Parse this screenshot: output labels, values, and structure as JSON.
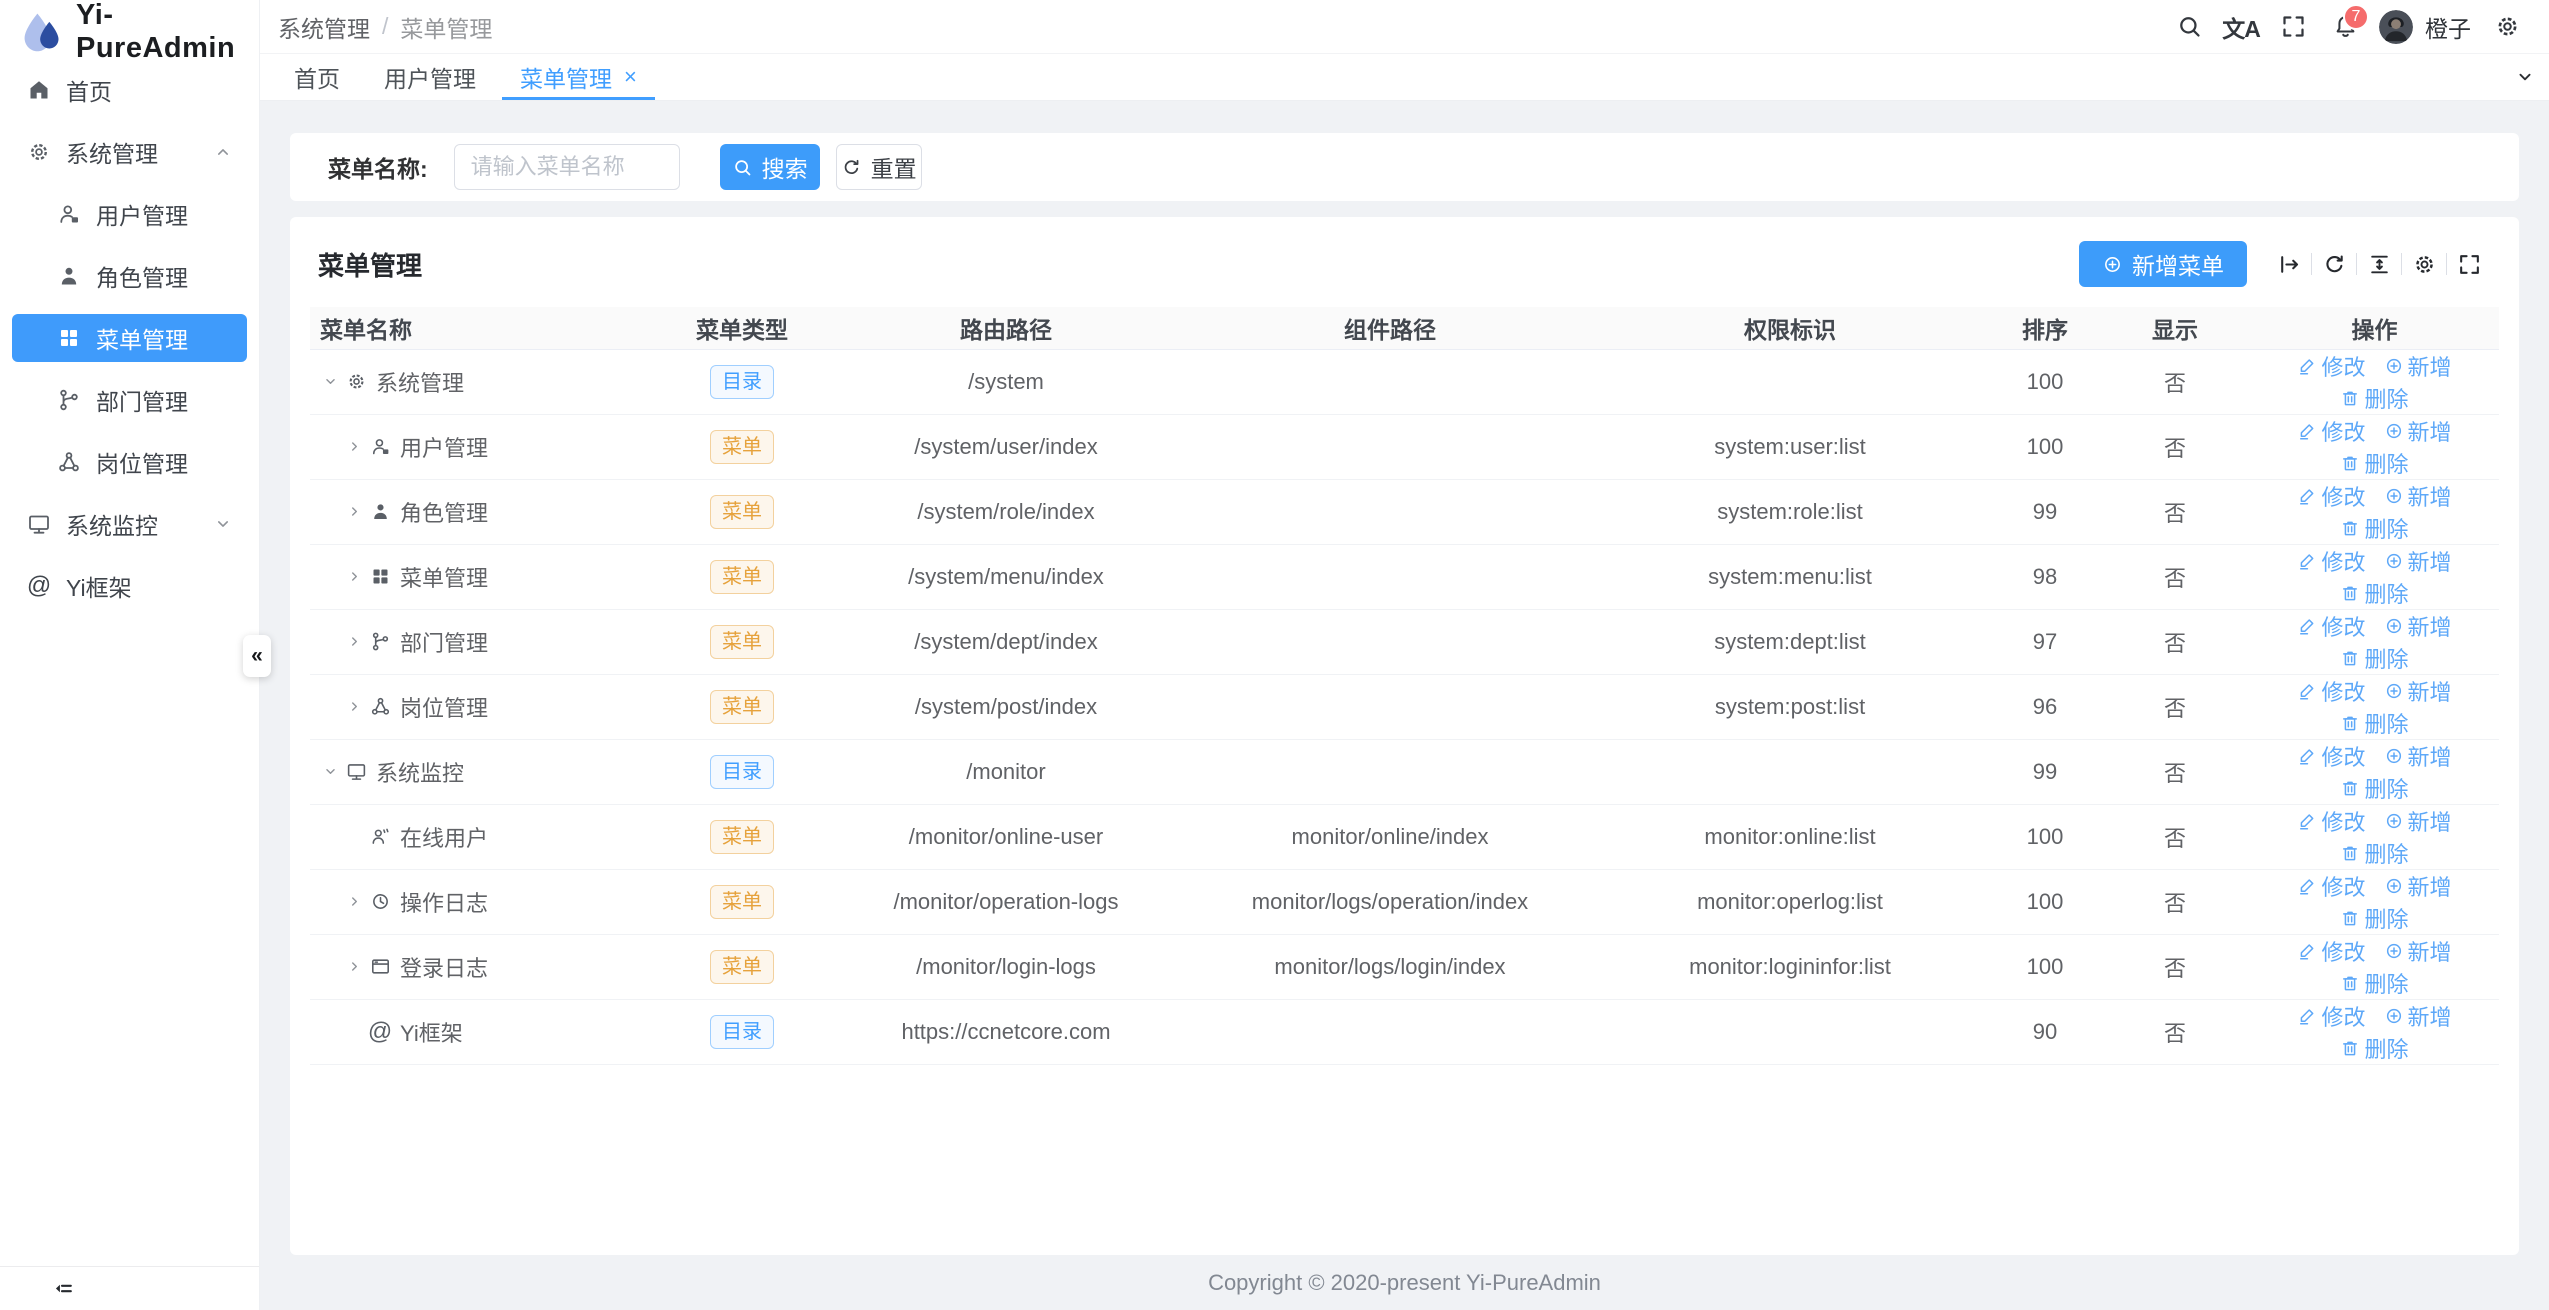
{
  "app": {
    "title": "Yi-PureAdmin"
  },
  "colors": {
    "primary": "#409eff",
    "badge_red": "#f56c6c",
    "tag_dir": "#409eff",
    "tag_menu": "#e6a23c",
    "action_link": "#5ea8f8",
    "sidebar_active_bg": "#3f9bfb"
  },
  "icons": {
    "at_glyph": "@",
    "translate_glyph": "文A",
    "collapse_glyph": "«",
    "close_glyph": "×"
  },
  "header": {
    "breadcrumb": {
      "items": [
        "系统管理",
        "菜单管理"
      ],
      "separator": "/"
    },
    "badge_count": "7",
    "username": "橙子"
  },
  "tabs": [
    {
      "label": "首页",
      "active": false,
      "closable": false
    },
    {
      "label": "用户管理",
      "active": false,
      "closable": false
    },
    {
      "label": "菜单管理",
      "active": true,
      "closable": true
    }
  ],
  "sidebar": {
    "items": [
      {
        "key": "home",
        "icon": "home",
        "label": "首页",
        "level": 1
      },
      {
        "key": "system",
        "icon": "gear",
        "label": "系统管理",
        "level": 1,
        "chevron": "up"
      },
      {
        "key": "user",
        "icon": "user",
        "label": "用户管理",
        "level": 2
      },
      {
        "key": "role",
        "icon": "role",
        "label": "角色管理",
        "level": 2
      },
      {
        "key": "menu",
        "icon": "grid",
        "label": "菜单管理",
        "level": 2,
        "active": true
      },
      {
        "key": "dept",
        "icon": "dept",
        "label": "部门管理",
        "level": 2
      },
      {
        "key": "post",
        "icon": "post",
        "label": "岗位管理",
        "level": 2
      },
      {
        "key": "monitor",
        "icon": "monitor",
        "label": "系统监控",
        "level": 1,
        "chevron": "down"
      },
      {
        "key": "yi",
        "icon": "at",
        "label": "Yi框架",
        "level": 1
      }
    ]
  },
  "search": {
    "label": "菜单名称:",
    "placeholder": "请输入菜单名称",
    "search_label": "搜索",
    "reset_label": "重置"
  },
  "panel": {
    "title": "菜单管理",
    "add_label": "新增菜单",
    "toolbar_icons": [
      "expand",
      "refresh",
      "density",
      "gear",
      "fullscreen"
    ]
  },
  "table": {
    "headers": [
      "菜单名称",
      "菜单类型",
      "路由路径",
      "组件路径",
      "权限标识",
      "排序",
      "显示",
      "操作"
    ],
    "tag_labels": {
      "dir": "目录",
      "menu": "菜单"
    },
    "actions": [
      {
        "label": "修改",
        "icon": "edit"
      },
      {
        "label": "新增",
        "icon": "plus-circle"
      },
      {
        "label": "删除",
        "icon": "trash"
      }
    ],
    "rows": [
      {
        "arrow": "down",
        "indent": 0,
        "icon": "gear",
        "name": "系统管理",
        "type": "dir",
        "route": "/system",
        "component": "",
        "perm": "",
        "sort": "100",
        "show": "否"
      },
      {
        "arrow": "right",
        "indent": 1,
        "icon": "user",
        "name": "用户管理",
        "type": "menu",
        "route": "/system/user/index",
        "component": "",
        "perm": "system:user:list",
        "sort": "100",
        "show": "否"
      },
      {
        "arrow": "right",
        "indent": 1,
        "icon": "role",
        "name": "角色管理",
        "type": "menu",
        "route": "/system/role/index",
        "component": "",
        "perm": "system:role:list",
        "sort": "99",
        "show": "否"
      },
      {
        "arrow": "right",
        "indent": 1,
        "icon": "grid",
        "name": "菜单管理",
        "type": "menu",
        "route": "/system/menu/index",
        "component": "",
        "perm": "system:menu:list",
        "sort": "98",
        "show": "否"
      },
      {
        "arrow": "right",
        "indent": 1,
        "icon": "dept",
        "name": "部门管理",
        "type": "menu",
        "route": "/system/dept/index",
        "component": "",
        "perm": "system:dept:list",
        "sort": "97",
        "show": "否"
      },
      {
        "arrow": "right",
        "indent": 1,
        "icon": "post",
        "name": "岗位管理",
        "type": "menu",
        "route": "/system/post/index",
        "component": "",
        "perm": "system:post:list",
        "sort": "96",
        "show": "否"
      },
      {
        "arrow": "down",
        "indent": 0,
        "icon": "monitor",
        "name": "系统监控",
        "type": "dir",
        "route": "/monitor",
        "component": "",
        "perm": "",
        "sort": "99",
        "show": "否"
      },
      {
        "arrow": "none",
        "indent": 1,
        "icon": "online",
        "name": "在线用户",
        "type": "menu",
        "route": "/monitor/online-user",
        "component": "monitor/online/index",
        "perm": "monitor:online:list",
        "sort": "100",
        "show": "否"
      },
      {
        "arrow": "right",
        "indent": 1,
        "icon": "clock",
        "name": "操作日志",
        "type": "menu",
        "route": "/monitor/operation-logs",
        "component": "monitor/logs/operation/index",
        "perm": "monitor:operlog:list",
        "sort": "100",
        "show": "否"
      },
      {
        "arrow": "right",
        "indent": 1,
        "icon": "login",
        "name": "登录日志",
        "type": "menu",
        "route": "/monitor/login-logs",
        "component": "monitor/logs/login/index",
        "perm": "monitor:logininfor:list",
        "sort": "100",
        "show": "否"
      },
      {
        "arrow": "none",
        "indent": 1,
        "icon": "at",
        "name": "Yi框架",
        "type": "dir",
        "route": "https://ccnetcore.com",
        "component": "",
        "perm": "",
        "sort": "90",
        "show": "否"
      }
    ]
  },
  "footer": {
    "copyright": "Copyright © 2020-present Yi-PureAdmin"
  }
}
